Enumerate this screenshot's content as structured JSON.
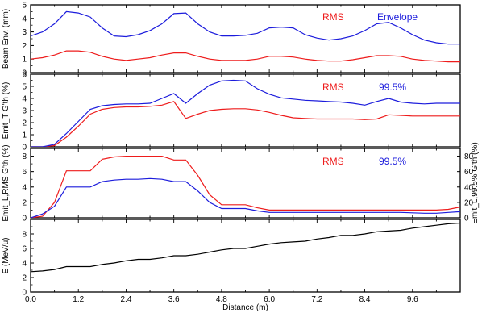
{
  "chart_data": [
    {
      "type": "line",
      "ylabel": "Beam Env. (mm)",
      "xlim": [
        0,
        10.8
      ],
      "ylim": [
        0,
        5
      ],
      "yticks": [
        "0",
        "1",
        "2",
        "3",
        "4",
        "5"
      ],
      "legend": [
        "RMS",
        "Envelope"
      ],
      "series": [
        {
          "name": "RMS",
          "color": "#ee1c1c",
          "x": [
            0,
            0.3,
            0.6,
            0.9,
            1.2,
            1.5,
            1.8,
            2.1,
            2.4,
            2.7,
            3.0,
            3.3,
            3.6,
            3.9,
            4.2,
            4.5,
            4.8,
            5.1,
            5.4,
            5.7,
            6.0,
            6.3,
            6.6,
            6.9,
            7.2,
            7.5,
            7.8,
            8.1,
            8.4,
            8.7,
            9.0,
            9.3,
            9.6,
            9.9,
            10.2,
            10.5,
            10.8
          ],
          "y": [
            1.0,
            1.1,
            1.3,
            1.6,
            1.6,
            1.5,
            1.2,
            1.0,
            0.9,
            1.0,
            1.1,
            1.3,
            1.45,
            1.45,
            1.2,
            1.0,
            0.9,
            0.9,
            0.9,
            1.0,
            1.2,
            1.2,
            1.15,
            1.0,
            0.9,
            0.85,
            0.85,
            0.95,
            1.1,
            1.25,
            1.25,
            1.2,
            1.0,
            0.9,
            0.85,
            0.8,
            0.8
          ]
        },
        {
          "name": "Envelope",
          "color": "#1c1cdc",
          "x": [
            0,
            0.3,
            0.6,
            0.9,
            1.2,
            1.5,
            1.8,
            2.1,
            2.4,
            2.7,
            3.0,
            3.3,
            3.6,
            3.9,
            4.2,
            4.5,
            4.8,
            5.1,
            5.4,
            5.7,
            6.0,
            6.3,
            6.6,
            6.9,
            7.2,
            7.5,
            7.8,
            8.1,
            8.4,
            8.7,
            9.0,
            9.3,
            9.6,
            9.9,
            10.2,
            10.5,
            10.8
          ],
          "y": [
            2.7,
            3.0,
            3.6,
            4.5,
            4.4,
            4.1,
            3.3,
            2.7,
            2.65,
            2.8,
            3.1,
            3.6,
            4.35,
            4.4,
            3.6,
            3.0,
            2.7,
            2.7,
            2.75,
            2.9,
            3.3,
            3.35,
            3.3,
            2.8,
            2.55,
            2.4,
            2.5,
            2.7,
            3.1,
            3.6,
            3.7,
            3.3,
            2.8,
            2.4,
            2.2,
            2.1,
            2.1
          ]
        }
      ]
    },
    {
      "type": "line",
      "ylabel": "Emit_T G'th (%)",
      "xlim": [
        0,
        10.8
      ],
      "ylim": [
        0,
        6
      ],
      "yticks": [
        "0",
        "1",
        "2",
        "3",
        "4",
        "5",
        "6"
      ],
      "legend": [
        "RMS",
        "99.5%"
      ],
      "series": [
        {
          "name": "RMS",
          "color": "#ee1c1c",
          "x": [
            0,
            0.3,
            0.6,
            0.9,
            1.2,
            1.5,
            1.8,
            2.1,
            2.4,
            2.7,
            3.0,
            3.3,
            3.6,
            3.9,
            4.2,
            4.5,
            4.8,
            5.1,
            5.4,
            5.7,
            6.0,
            6.3,
            6.6,
            6.9,
            7.2,
            7.5,
            7.8,
            8.1,
            8.4,
            8.7,
            9.0,
            9.3,
            9.6,
            9.9,
            10.2,
            10.5,
            10.8
          ],
          "y": [
            0,
            0,
            0.1,
            0.8,
            1.7,
            2.7,
            3.1,
            3.25,
            3.3,
            3.3,
            3.35,
            3.45,
            3.75,
            2.35,
            2.7,
            3.0,
            3.1,
            3.15,
            3.15,
            3.05,
            2.85,
            2.6,
            2.4,
            2.35,
            2.3,
            2.3,
            2.3,
            2.3,
            2.25,
            2.3,
            2.65,
            2.6,
            2.55,
            2.55,
            2.55,
            2.55,
            2.55
          ]
        },
        {
          "name": "99.5%",
          "color": "#1c1cdc",
          "x": [
            0,
            0.3,
            0.6,
            0.9,
            1.2,
            1.5,
            1.8,
            2.1,
            2.4,
            2.7,
            3.0,
            3.3,
            3.6,
            3.9,
            4.2,
            4.5,
            4.8,
            5.1,
            5.4,
            5.7,
            6.0,
            6.3,
            6.6,
            6.9,
            7.2,
            7.5,
            7.8,
            8.1,
            8.4,
            8.7,
            9.0,
            9.3,
            9.6,
            9.9,
            10.2,
            10.5,
            10.8
          ],
          "y": [
            0,
            0,
            0.2,
            1.1,
            2.1,
            3.1,
            3.4,
            3.5,
            3.55,
            3.55,
            3.6,
            4.0,
            4.4,
            3.6,
            4.4,
            5.1,
            5.45,
            5.5,
            5.45,
            4.8,
            4.35,
            4.05,
            3.95,
            3.85,
            3.8,
            3.75,
            3.7,
            3.6,
            3.45,
            3.75,
            4.0,
            3.7,
            3.6,
            3.55,
            3.6,
            3.6,
            3.6
          ]
        }
      ]
    },
    {
      "type": "line",
      "ylabel": "Emit_L,RMS G'th (%)",
      "ylabel_right": "Emit_L,99.5% G'th (%)",
      "xlim": [
        0,
        10.8
      ],
      "ylim": [
        0,
        9
      ],
      "ylim_right": [
        0,
        90
      ],
      "yticks": [
        "0",
        "2",
        "4",
        "6",
        "8"
      ],
      "yticks_right": [
        "0",
        "20",
        "40",
        "60",
        "80"
      ],
      "legend": [
        "RMS",
        "99.5%"
      ],
      "series": [
        {
          "name": "RMS",
          "color": "#ee1c1c",
          "x": [
            0,
            0.3,
            0.6,
            0.9,
            1.2,
            1.5,
            1.8,
            2.1,
            2.4,
            2.7,
            3.0,
            3.3,
            3.6,
            3.9,
            4.2,
            4.5,
            4.8,
            5.1,
            5.4,
            5.7,
            6.0,
            6.3,
            6.6,
            6.9,
            7.2,
            7.5,
            7.8,
            8.1,
            8.4,
            8.7,
            9.0,
            9.3,
            9.6,
            9.9,
            10.2,
            10.5,
            10.8
          ],
          "y": [
            0,
            0.2,
            2.0,
            6.1,
            6.1,
            6.1,
            7.6,
            7.9,
            8.0,
            8.0,
            8.0,
            8.0,
            7.5,
            7.5,
            5.5,
            3.0,
            1.7,
            1.7,
            1.7,
            1.3,
            1.0,
            1.0,
            1.0,
            1.0,
            1.0,
            1.0,
            1.0,
            1.0,
            1.0,
            1.0,
            1.0,
            1.0,
            1.0,
            1.0,
            1.0,
            1.1,
            1.4
          ]
        },
        {
          "name": "99.5%",
          "color": "#1c1cdc",
          "x": [
            0,
            0.3,
            0.6,
            0.9,
            1.2,
            1.5,
            1.8,
            2.1,
            2.4,
            2.7,
            3.0,
            3.3,
            3.6,
            3.9,
            4.2,
            4.5,
            4.8,
            5.1,
            5.4,
            5.7,
            6.0,
            6.3,
            6.6,
            6.9,
            7.2,
            7.5,
            7.8,
            8.1,
            8.4,
            8.7,
            9.0,
            9.3,
            9.6,
            9.9,
            10.2,
            10.5,
            10.8
          ],
          "y": [
            0,
            0.5,
            1.5,
            4.0,
            4.0,
            4.0,
            4.7,
            4.9,
            5.0,
            5.0,
            5.1,
            5.0,
            4.7,
            4.7,
            3.5,
            2.0,
            1.2,
            1.2,
            1.2,
            0.9,
            0.7,
            0.7,
            0.7,
            0.7,
            0.7,
            0.7,
            0.7,
            0.7,
            0.7,
            0.7,
            0.7,
            0.7,
            0.65,
            0.6,
            0.6,
            0.7,
            0.8
          ]
        }
      ]
    },
    {
      "type": "line",
      "ylabel": "E (MeV/u)",
      "xlabel": "Distance (m)",
      "xlim": [
        0,
        10.8
      ],
      "ylim": [
        0,
        10
      ],
      "yticks": [
        "0",
        "2",
        "4",
        "6",
        "8"
      ],
      "xticks": [
        "0.0",
        "1.2",
        "2.4",
        "3.6",
        "4.8",
        "6.0",
        "7.2",
        "8.4",
        "9.6"
      ],
      "series": [
        {
          "color": "#000000",
          "x": [
            0,
            0.3,
            0.6,
            0.9,
            1.2,
            1.5,
            1.8,
            2.1,
            2.4,
            2.7,
            3.0,
            3.3,
            3.6,
            3.9,
            4.2,
            4.5,
            4.8,
            5.1,
            5.4,
            5.7,
            6.0,
            6.3,
            6.6,
            6.9,
            7.2,
            7.5,
            7.8,
            8.1,
            8.4,
            8.7,
            9.0,
            9.3,
            9.6,
            9.9,
            10.2,
            10.5,
            10.8
          ],
          "y": [
            2.8,
            2.9,
            3.1,
            3.5,
            3.5,
            3.5,
            3.8,
            4.0,
            4.3,
            4.5,
            4.5,
            4.7,
            5.0,
            5.0,
            5.2,
            5.5,
            5.8,
            6.0,
            6.0,
            6.3,
            6.6,
            6.8,
            6.9,
            7.0,
            7.3,
            7.5,
            7.8,
            7.8,
            8.0,
            8.3,
            8.4,
            8.5,
            8.8,
            9.0,
            9.2,
            9.4,
            9.5
          ]
        }
      ]
    }
  ]
}
